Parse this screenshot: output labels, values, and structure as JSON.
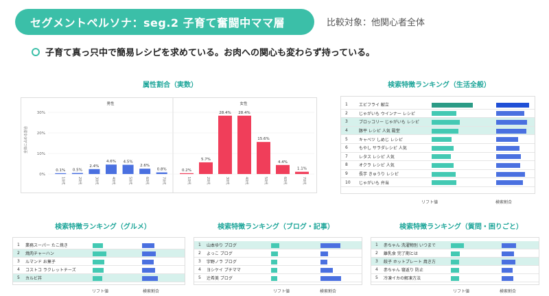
{
  "header": {
    "title": "セグメントペルソナ：seg.2 子育て奮闘中ママ層",
    "compare": "比較対象：他関心者全体"
  },
  "summary": "子育て真っ只中で簡易レシピを求めている。お肉への関心も変わらず持っている。",
  "colors": {
    "accent": "#3bbfa8",
    "bar_blue": "#4a70e0",
    "bar_red": "#f03e5a",
    "bar_green": "#43c9b3"
  },
  "attribute_chart": {
    "title": "属性割合（実数）",
    "y_axis_label": "全体に占める割合",
    "chart_data": [
      {
        "type": "bar",
        "title": "男性",
        "categories": [
          "10代",
          "20代",
          "30代",
          "40代",
          "50代",
          "60代",
          "70代"
        ],
        "values": [
          0.1,
          0.5,
          2.4,
          4.6,
          4.5,
          2.6,
          0.8
        ],
        "value_labels": [
          "0.1%",
          "0.5%",
          "2.4%",
          "4.6%",
          "4.5%",
          "2.6%",
          "0.8%"
        ],
        "ylim": [
          0,
          30
        ],
        "ytick_labels": [
          "30%",
          "20%",
          "10%",
          "0%"
        ],
        "color": "#4a70e0"
      },
      {
        "type": "bar",
        "title": "女性",
        "categories": [
          "10代",
          "20代",
          "30代",
          "40代",
          "50代",
          "60代",
          "70代"
        ],
        "values": [
          0.2,
          5.7,
          28.4,
          28.4,
          15.6,
          4.4,
          1.1
        ],
        "value_labels": [
          "0.2%",
          "5.7%",
          "28.4%",
          "28.4%",
          "15.6%",
          "4.4%",
          "1.1%"
        ],
        "ylim": [
          0,
          30
        ],
        "color": "#f03e5a"
      }
    ]
  },
  "ranking_life": {
    "title": "検索特徴ランキング（生活全般）",
    "footer_lift": "リフト値",
    "footer_share": "検索割合",
    "rows": [
      {
        "num": "1",
        "label": "エビフライ 献立",
        "lift": 0.85,
        "share": 0.82,
        "hl": false,
        "dark": true
      },
      {
        "num": "2",
        "label": "じゃがいも ウインナー レシピ",
        "lift": 0.52,
        "share": 0.7,
        "hl": false,
        "dark": false
      },
      {
        "num": "3",
        "label": "ブロッコリー じゃがいも レシピ",
        "lift": 0.58,
        "share": 0.78,
        "hl": true,
        "dark": false
      },
      {
        "num": "4",
        "label": "豚平 レシピ 人気 殿堂",
        "lift": 0.55,
        "share": 0.75,
        "hl": true,
        "dark": false
      },
      {
        "num": "5",
        "label": "キャベツ しめじ レシピ",
        "lift": 0.42,
        "share": 0.55,
        "hl": false,
        "dark": false
      },
      {
        "num": "6",
        "label": "もやし サラダレシピ 人気",
        "lift": 0.45,
        "share": 0.58,
        "hl": false,
        "dark": false
      },
      {
        "num": "7",
        "label": "レタス レシピ 人気",
        "lift": 0.4,
        "share": 0.62,
        "hl": false,
        "dark": false
      },
      {
        "num": "8",
        "label": "オクラ レシピ 人気",
        "lift": 0.45,
        "share": 0.6,
        "hl": false,
        "dark": false
      },
      {
        "num": "9",
        "label": "長芋 きゅうり レシピ",
        "lift": 0.5,
        "share": 0.72,
        "hl": false,
        "dark": false
      },
      {
        "num": "10",
        "label": "じゃがいも 弁当",
        "lift": 0.52,
        "share": 0.68,
        "hl": false,
        "dark": false
      }
    ]
  },
  "ranking_gourmet": {
    "title": "検索特徴ランキング（グルメ）",
    "footer_lift": "リフト値",
    "footer_share": "検索割合",
    "rows": [
      {
        "num": "1",
        "label": "業務スーパー たこ焼き",
        "lift": 0.7,
        "share": 0.7,
        "hl": false,
        "dark": false
      },
      {
        "num": "2",
        "label": "焼肉チャーハン",
        "lift": 0.9,
        "share": 0.78,
        "hl": true,
        "dark": false
      },
      {
        "num": "3",
        "label": "ルマンド お菓子",
        "lift": 0.75,
        "share": 0.65,
        "hl": false,
        "dark": false
      },
      {
        "num": "4",
        "label": "コストコ ラクレットチーズ",
        "lift": 0.72,
        "share": 0.72,
        "hl": false,
        "dark": false
      },
      {
        "num": "5",
        "label": "カルビ丼",
        "lift": 0.62,
        "share": 0.88,
        "hl": true,
        "dark": false
      }
    ]
  },
  "ranking_blog": {
    "title": "検索特徴ランキング（ブログ・記事）",
    "footer_lift": "リフト値",
    "footer_share": "検索割合",
    "rows": [
      {
        "num": "1",
        "label": "山本ゆり ブログ",
        "lift": 0.55,
        "share": 0.9,
        "hl": true,
        "dark": false
      },
      {
        "num": "2",
        "label": "よっこ ブログ",
        "lift": 0.45,
        "share": 0.35,
        "hl": false,
        "dark": false
      },
      {
        "num": "3",
        "label": "宇野ノラ ブログ",
        "lift": 0.4,
        "share": 0.3,
        "hl": false,
        "dark": false
      },
      {
        "num": "4",
        "label": "ヨシケイ プチママ",
        "lift": 0.4,
        "share": 0.55,
        "hl": false,
        "dark": false
      },
      {
        "num": "5",
        "label": "辻希美 ブログ",
        "lift": 0.4,
        "share": 0.95,
        "hl": false,
        "dark": false
      }
    ]
  },
  "ranking_question": {
    "title": "検索特徴ランキング（質問・困りごと）",
    "footer_lift": "リフト値",
    "footer_share": "検索割合",
    "rows": [
      {
        "num": "1",
        "label": "赤ちゃん 洗濯物別 いつまで",
        "lift": 0.85,
        "share": 0.8,
        "hl": true,
        "dark": false
      },
      {
        "num": "2",
        "label": "離乳食 完了期とは",
        "lift": 0.6,
        "share": 0.7,
        "hl": false,
        "dark": false
      },
      {
        "num": "3",
        "label": "餃子 ホットプレート 焼き方",
        "lift": 0.55,
        "share": 0.75,
        "hl": true,
        "dark": false
      },
      {
        "num": "4",
        "label": "赤ちゃん 寝返り 防止",
        "lift": 0.55,
        "share": 0.6,
        "hl": false,
        "dark": false
      },
      {
        "num": "5",
        "label": "冷凍イカの解凍方法",
        "lift": 0.55,
        "share": 0.65,
        "hl": false,
        "dark": false
      }
    ]
  }
}
